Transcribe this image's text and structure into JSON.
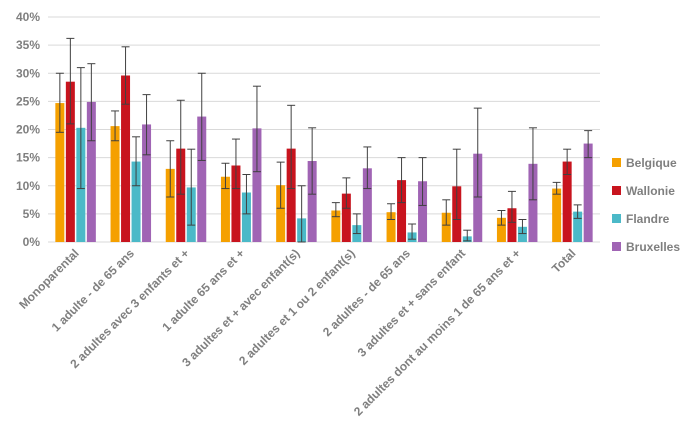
{
  "chart_data": {
    "type": "bar",
    "categories": [
      "Monoparental",
      "1 adulte - de 65 ans",
      "2 adultes avec 3 enfants et +",
      "1 adulte 65 ans et +",
      "3 adultes et + avec enfant(s)",
      "2 adultes et 1 ou 2 enfant(s)",
      "2 adultes - de 65 ans",
      "3 adultes et + sans enfant",
      "2 adultes dont au moins 1 de 65 ans et +",
      "Total"
    ],
    "series": [
      {
        "name": "Belgique",
        "color": "#F5A000",
        "values": [
          24.7,
          20.6,
          13.0,
          11.6,
          10.1,
          5.6,
          5.3,
          5.2,
          4.3,
          9.5
        ],
        "err_low": [
          19.5,
          18.0,
          8.0,
          9.5,
          6.0,
          4.5,
          4.0,
          3.0,
          3.0,
          8.5
        ],
        "err_high": [
          30.0,
          23.3,
          18.0,
          14.0,
          14.2,
          7.0,
          6.8,
          7.5,
          5.6,
          10.6
        ]
      },
      {
        "name": "Wallonie",
        "color": "#C8141E",
        "values": [
          28.5,
          29.6,
          16.6,
          13.6,
          16.6,
          8.6,
          11.0,
          9.9,
          6.0,
          14.3
        ],
        "err_low": [
          21.0,
          24.5,
          8.5,
          9.5,
          9.5,
          6.0,
          7.0,
          4.0,
          3.5,
          12.0
        ],
        "err_high": [
          36.2,
          34.7,
          25.2,
          18.3,
          24.3,
          11.4,
          15.0,
          16.5,
          9.0,
          16.5
        ]
      },
      {
        "name": "Flandre",
        "color": "#4BB9C8",
        "values": [
          20.3,
          14.3,
          9.7,
          8.8,
          4.2,
          3.0,
          1.7,
          1.0,
          2.7,
          5.4
        ],
        "err_low": [
          9.5,
          10.0,
          3.0,
          5.0,
          0.0,
          1.5,
          0.5,
          0.2,
          1.5,
          4.2
        ],
        "err_high": [
          31.0,
          18.7,
          16.5,
          12.0,
          10.0,
          5.0,
          3.2,
          2.1,
          4.0,
          6.6
        ]
      },
      {
        "name": "Bruxelles",
        "color": "#A064B4",
        "values": [
          24.9,
          20.9,
          22.3,
          20.2,
          14.4,
          13.1,
          10.8,
          15.7,
          13.9,
          17.5
        ],
        "err_low": [
          18.0,
          15.5,
          14.5,
          12.5,
          8.5,
          9.5,
          6.5,
          8.0,
          7.5,
          15.0
        ],
        "err_high": [
          31.7,
          26.2,
          30.0,
          27.7,
          20.3,
          16.9,
          15.0,
          23.8,
          20.3,
          19.8
        ]
      }
    ],
    "y_ticks": [
      "0%",
      "5%",
      "10%",
      "15%",
      "20%",
      "25%",
      "30%",
      "35%",
      "40%"
    ],
    "ylim": [
      0,
      40
    ],
    "grid": true,
    "legend_position": "right"
  }
}
